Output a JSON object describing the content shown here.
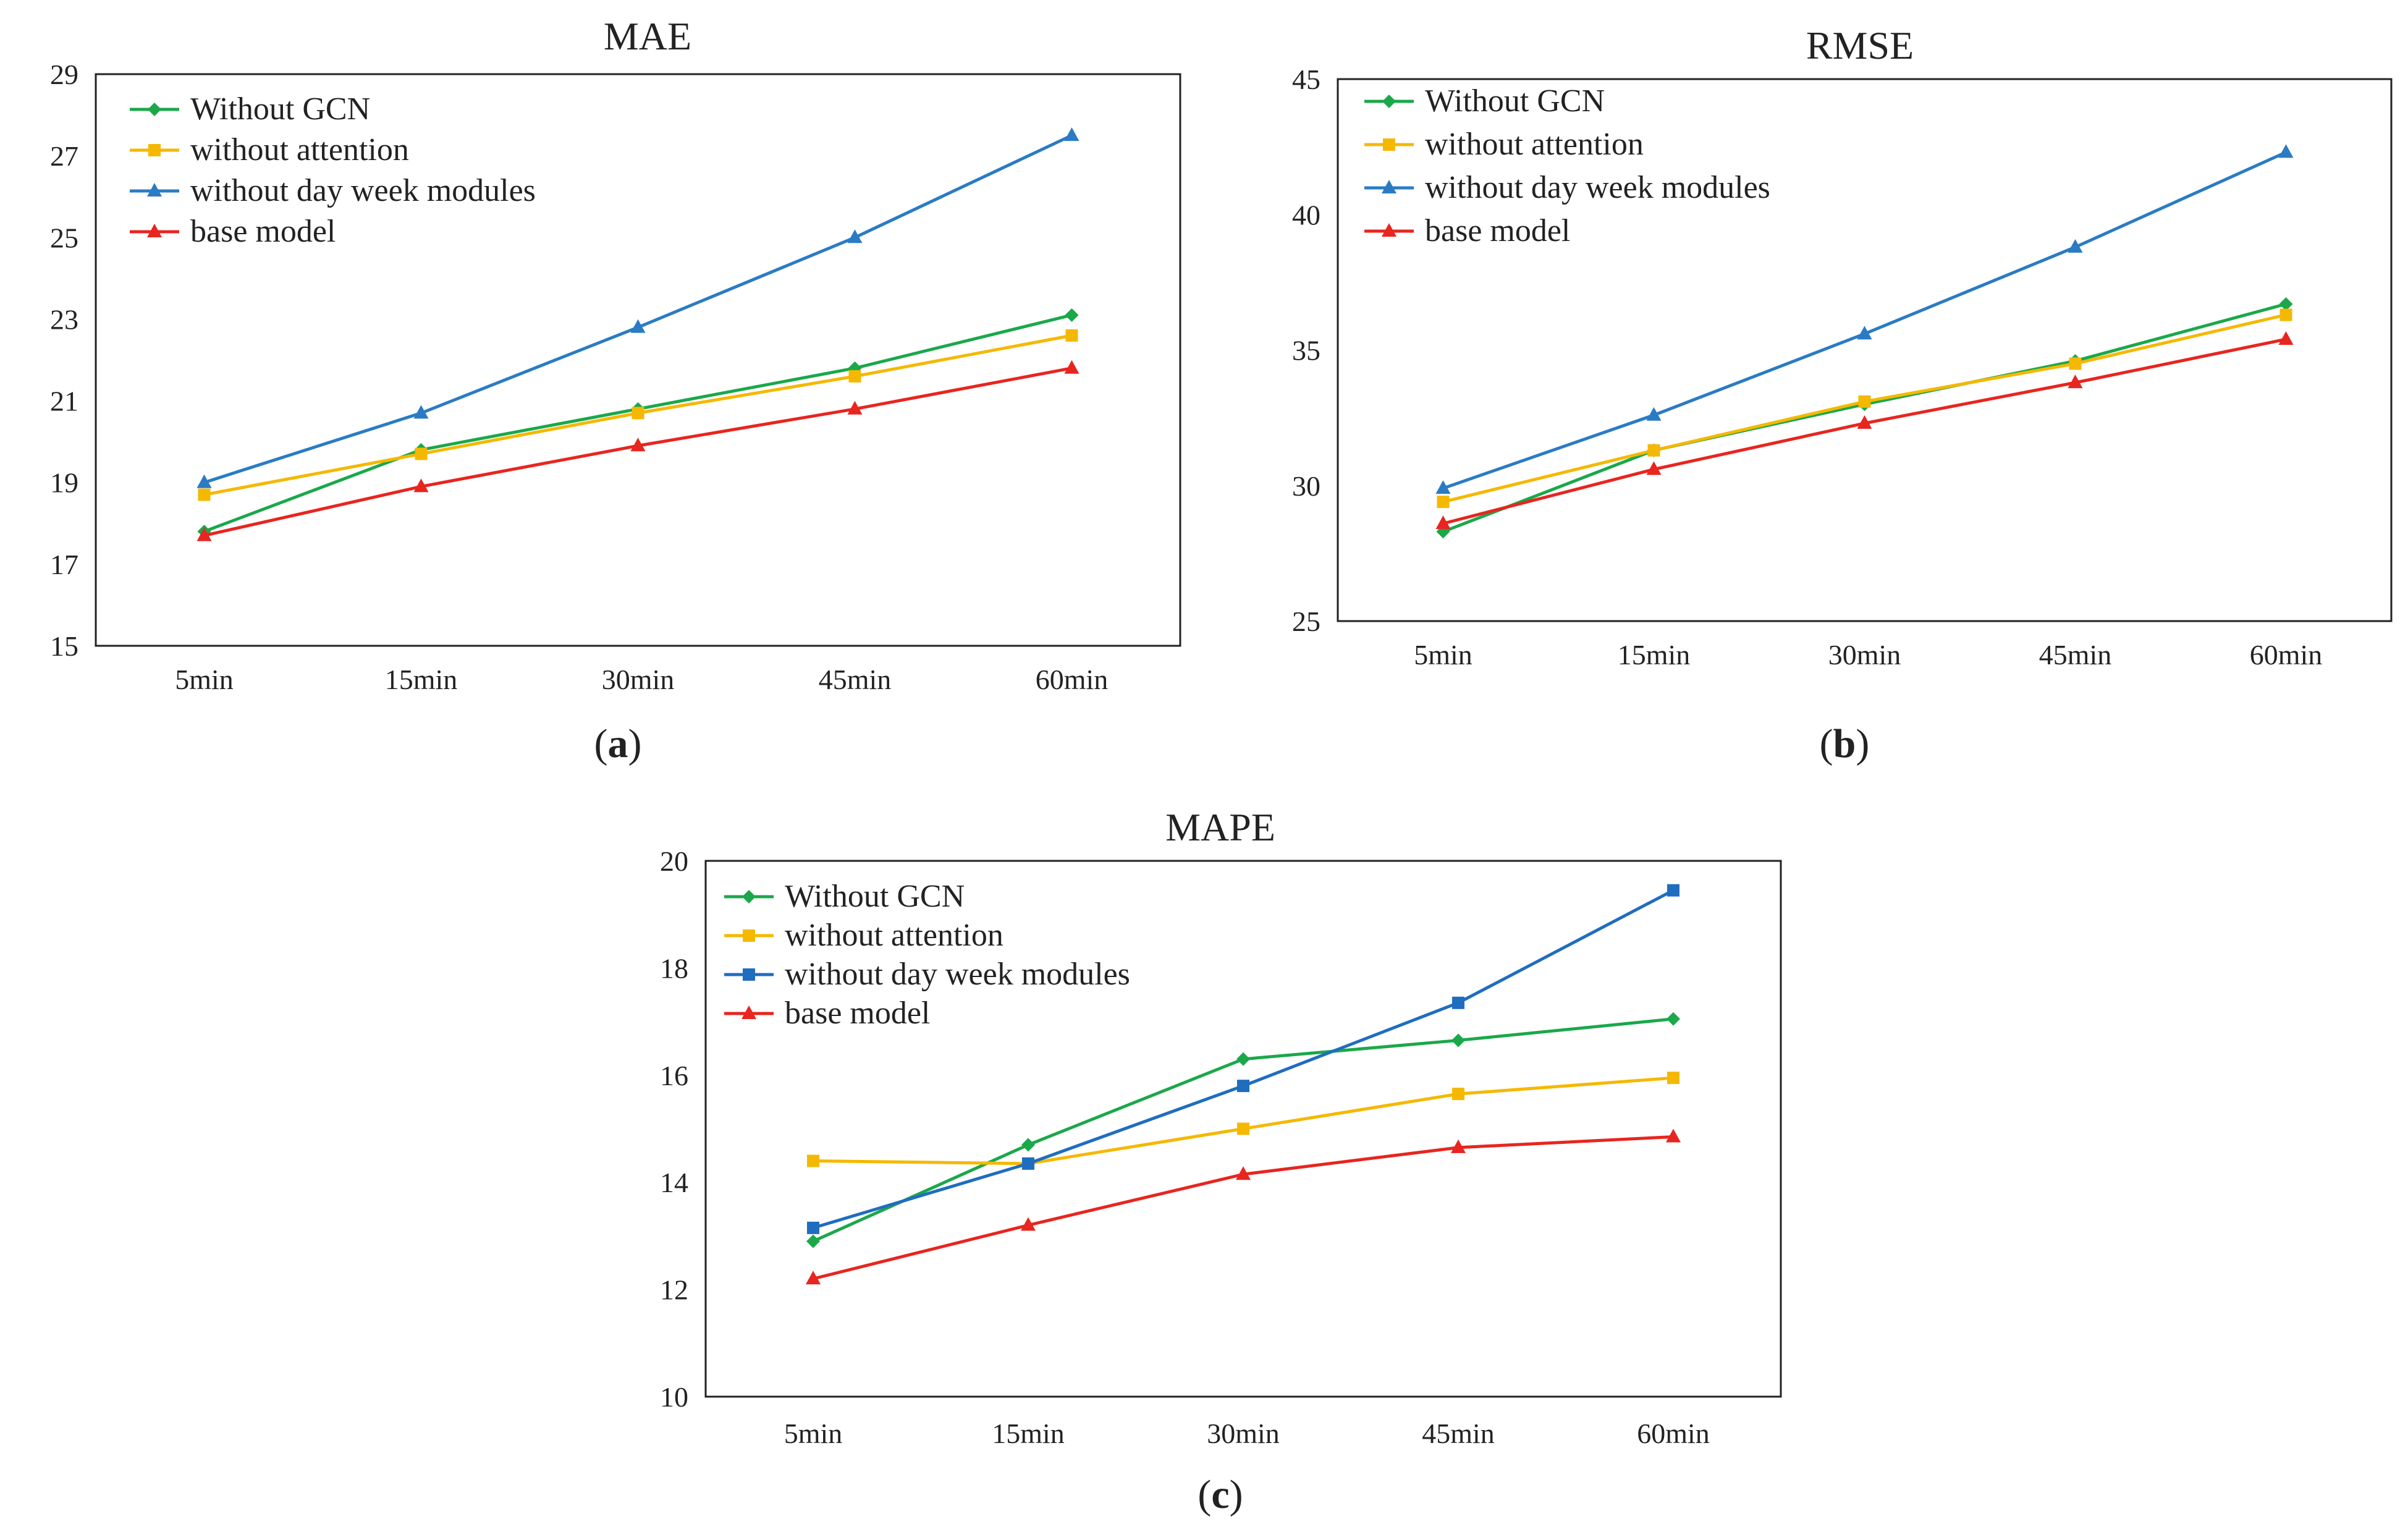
{
  "chart_data": [
    {
      "type": "line",
      "title": "MAE",
      "caption": "a",
      "categories": [
        "5min",
        "15min",
        "30min",
        "45min",
        "60min"
      ],
      "ylim": [
        15,
        29
      ],
      "yticks": [
        15,
        17,
        19,
        21,
        23,
        25,
        27,
        29
      ],
      "grid": false,
      "legend_position": "top-left",
      "series": [
        {
          "name": "Without GCN",
          "color": "#1aa84a",
          "marker": "diamond",
          "values": [
            17.8,
            19.8,
            20.8,
            21.8,
            23.1
          ]
        },
        {
          "name": "without attention",
          "color": "#f5b800",
          "marker": "square",
          "values": [
            18.7,
            19.7,
            20.7,
            21.6,
            22.6
          ]
        },
        {
          "name": "without day week modules",
          "color": "#2a7bc4",
          "marker": "triangle",
          "values": [
            19.0,
            20.7,
            22.8,
            25.0,
            27.5
          ]
        },
        {
          "name": "base model",
          "color": "#e8251f",
          "marker": "triangle",
          "values": [
            17.7,
            18.9,
            19.9,
            20.8,
            21.8
          ]
        }
      ]
    },
    {
      "type": "line",
      "title": "RMSE",
      "caption": "b",
      "categories": [
        "5min",
        "15min",
        "30min",
        "45min",
        "60min"
      ],
      "ylim": [
        25,
        45
      ],
      "yticks": [
        25,
        30,
        35,
        40,
        45
      ],
      "grid": false,
      "legend_position": "top-left",
      "series": [
        {
          "name": "Without GCN",
          "color": "#1aa84a",
          "marker": "diamond",
          "values": [
            28.3,
            31.3,
            33.0,
            34.6,
            36.7
          ]
        },
        {
          "name": "without attention",
          "color": "#f5b800",
          "marker": "square",
          "values": [
            29.4,
            31.3,
            33.1,
            34.5,
            36.3
          ]
        },
        {
          "name": "without day week modules",
          "color": "#2a7bc4",
          "marker": "triangle",
          "values": [
            29.9,
            32.6,
            35.6,
            38.8,
            42.3
          ]
        },
        {
          "name": "base model",
          "color": "#e8251f",
          "marker": "triangle",
          "values": [
            28.6,
            30.6,
            32.3,
            33.8,
            35.4
          ]
        }
      ]
    },
    {
      "type": "line",
      "title": "MAPE",
      "caption": "c",
      "categories": [
        "5min",
        "15min",
        "30min",
        "45min",
        "60min"
      ],
      "ylim": [
        10,
        20
      ],
      "yticks": [
        10,
        12,
        14,
        16,
        18,
        20
      ],
      "grid": false,
      "legend_position": "top-left",
      "series": [
        {
          "name": "Without GCN",
          "color": "#1aa84a",
          "marker": "diamond",
          "values": [
            12.9,
            14.7,
            16.3,
            16.65,
            17.05
          ]
        },
        {
          "name": "without attention",
          "color": "#f5b800",
          "marker": "square",
          "values": [
            14.4,
            14.35,
            15.0,
            15.65,
            15.95
          ]
        },
        {
          "name": "without day week modules",
          "color": "#1f6dbf",
          "marker": "square",
          "values": [
            13.15,
            14.35,
            15.8,
            17.35,
            19.45
          ]
        },
        {
          "name": "base model",
          "color": "#e8251f",
          "marker": "triangle",
          "values": [
            12.2,
            13.2,
            14.15,
            14.65,
            14.85
          ]
        }
      ]
    }
  ]
}
